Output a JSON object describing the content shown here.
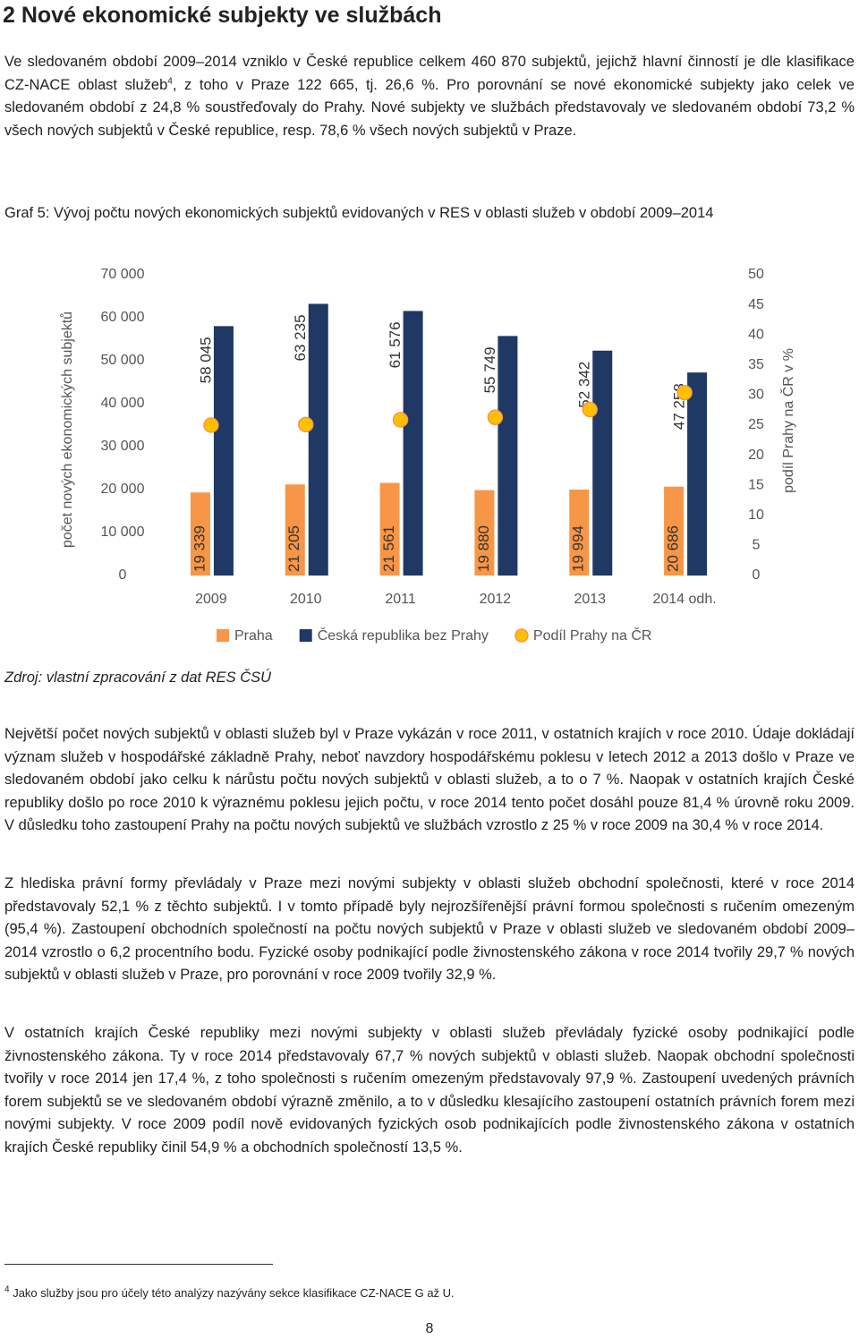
{
  "header": {
    "title": "2 Nové ekonomické subjekty ve službách"
  },
  "paragraph_1": [
    "Ve sledovaném období 2009–2014 vzniklo v České republice celkem 460 870 subjektů, jejichž hlavní činností je dle klasifikace CZ-NACE oblast služeb",
    "4",
    ", z toho v Praze 122 665, tj. 26,6 %. Pro porovnání se nové ekonomické subjekty jako celek ve sledovaném období z 24,8 % soustřeďovaly do Prahy. Nové subjekty ve službách představovaly ve sledovaném období 73,2 % všech nových subjektů v České republice, resp. 78,6 % všech nových subjektů v Praze."
  ],
  "chart_caption": "Graf 5: Vývoj počtu nových ekonomických subjektů evidovaných v RES v oblasti služeb v období 2009–2014",
  "chart_data": {
    "type": "bar",
    "categories": [
      "2009",
      "2010",
      "2011",
      "2012",
      "2013",
      "2014 odh."
    ],
    "y_label": "počet nových ekonomických subjektů",
    "y2_label": "podíl Prahy na ČR v %",
    "ylim": [
      0,
      70000
    ],
    "yticks": [
      0,
      {
        "value": 10000,
        "label": "10 000"
      },
      {
        "value": 20000,
        "label": "20 000"
      },
      {
        "value": 30000,
        "label": "30 000"
      },
      {
        "value": 40000,
        "label": "40 000"
      },
      {
        "value": 50000,
        "label": "50 000"
      },
      {
        "value": 60000,
        "label": "60 000"
      },
      {
        "value": 70000,
        "label": "70 000"
      }
    ],
    "y2lim": [
      0,
      50
    ],
    "y2ticks": [
      0,
      5,
      10,
      15,
      20,
      25,
      30,
      35,
      40,
      45,
      50
    ],
    "series": [
      {
        "name": "Praha",
        "color": "#f79646",
        "values": [
          19339,
          21205,
          21561,
          19880,
          19994,
          20686
        ],
        "value_labels": [
          "19 339",
          "21 205",
          "21 561",
          "19 880",
          "19 994",
          "20 686"
        ]
      },
      {
        "name": "Česká republika bez Prahy",
        "color": "#1f3864",
        "values": [
          58045,
          63235,
          61576,
          55749,
          52342,
          47258
        ],
        "value_labels": [
          "58 045",
          "63 235",
          "61 576",
          "55 749",
          "52 342",
          "47 258"
        ]
      },
      {
        "name": "Podíl Prahy na ČR",
        "color": "#ffc000",
        "axis": "y2",
        "values": [
          25.0,
          25.1,
          25.9,
          26.3,
          27.6,
          30.4
        ]
      }
    ]
  },
  "source": "Zdroj: vlastní zpracování z dat RES ČSÚ",
  "paragraph_2": "Největší počet nových subjektů v oblasti služeb byl v Praze vykázán v roce 2011, v ostatních krajích v roce 2010. Údaje dokládají význam služeb v hospodářské základně Prahy, neboť navzdory hospodářskému poklesu v letech 2012 a 2013 došlo v Praze ve sledovaném období jako celku k nárůstu počtu nových subjektů v oblasti služeb, a to o 7 %. Naopak v ostatních krajích České republiky došlo po roce 2010 k výraznému poklesu jejich počtu, v roce 2014 tento počet dosáhl pouze 81,4 % úrovně roku 2009. V důsledku toho zastoupení Prahy na počtu nových subjektů ve službách vzrostlo z 25 % v roce 2009 na 30,4 % v roce 2014.",
  "paragraph_3": "Z hlediska právní formy převládaly v Praze mezi novými subjekty v oblasti služeb obchodní společnosti, které v roce 2014 představovaly 52,1 % z těchto subjektů. I v tomto případě byly nejrozšířenější právní formou společnosti s ručením omezeným (95,4 %). Zastoupení obchodních společností na počtu nových subjektů v Praze v oblasti služeb ve sledovaném období 2009–2014 vzrostlo o 6,2 procentního bodu. Fyzické osoby podnikající podle živnostenského zákona v roce 2014 tvořily 29,7 % nových subjektů v oblasti služeb v Praze, pro porovnání v roce 2009 tvořily 32,9 %.",
  "paragraph_4": "V ostatních krajích České republiky mezi novými subjekty v oblasti služeb převládaly fyzické osoby podnikající podle živnostenského zákona. Ty v roce 2014 představovaly 67,7 % nových subjektů v oblasti služeb. Naopak obchodní společnosti tvořily v roce 2014 jen 17,4 %, z toho společnosti s ručením omezeným představovaly 97,9 %. Zastoupení uvedených právních forem subjektů se ve sledovaném období výrazně změnilo, a to v důsledku klesajícího zastoupení ostatních právních forem mezi novými subjekty. V roce 2009 podíl nově evidovaných fyzických osob podnikajících podle živnostenského zákona v ostatních krajích České republiky činil 54,9 % a obchodních společností 13,5 %.",
  "footnote": [
    "4",
    "Jako služby jsou pro účely této analýzy nazývány sekce klasifikace CZ-NACE G až U."
  ],
  "page_number": "8"
}
